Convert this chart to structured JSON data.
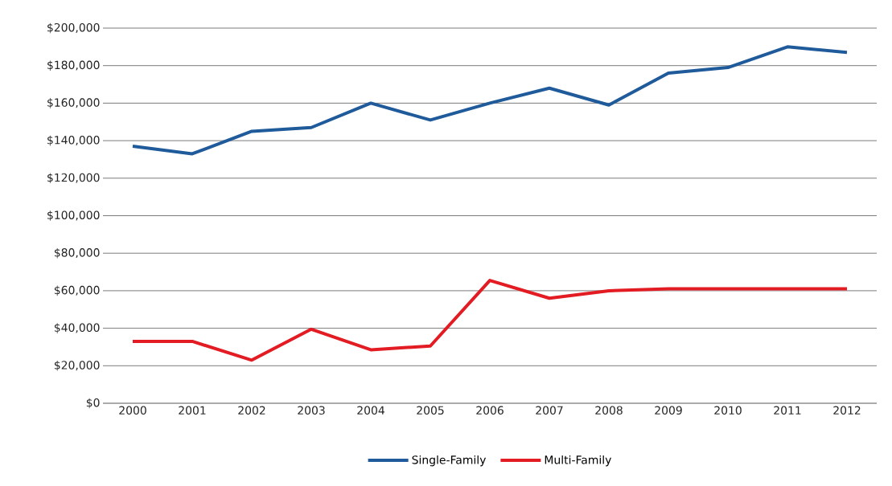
{
  "chart_data": {
    "type": "line",
    "categories": [
      "2000",
      "2001",
      "2002",
      "2003",
      "2004",
      "2005",
      "2006",
      "2007",
      "2008",
      "2009",
      "2010",
      "2011",
      "2012"
    ],
    "series": [
      {
        "name": "Single-Family",
        "color": "#1f5a9a",
        "values": [
          137000,
          133000,
          145000,
          147000,
          160000,
          151000,
          160000,
          168000,
          159000,
          176000,
          179000,
          190000,
          187000
        ]
      },
      {
        "name": "Multi-Family",
        "color": "#e31b23",
        "values": [
          33000,
          33000,
          23000,
          39500,
          28500,
          30500,
          65500,
          56000,
          60000,
          61000,
          61000,
          61000,
          61000
        ]
      }
    ],
    "ylim": [
      0,
      200000
    ],
    "yticks": [
      {
        "value": 0,
        "label": "$0"
      },
      {
        "value": 20000,
        "label": "$20,000"
      },
      {
        "value": 40000,
        "label": "$40,000"
      },
      {
        "value": 60000,
        "label": "$60,000"
      },
      {
        "value": 80000,
        "label": "$80,000"
      },
      {
        "value": 100000,
        "label": "$100,000"
      },
      {
        "value": 120000,
        "label": "$120,000"
      },
      {
        "value": 140000,
        "label": "$140,000"
      },
      {
        "value": 160000,
        "label": "$160,000"
      },
      {
        "value": 180000,
        "label": "$180,000"
      },
      {
        "value": 200000,
        "label": "$200,000"
      }
    ],
    "grid": "y",
    "legend": "bottom",
    "marker": "none",
    "line_style": "solid"
  }
}
